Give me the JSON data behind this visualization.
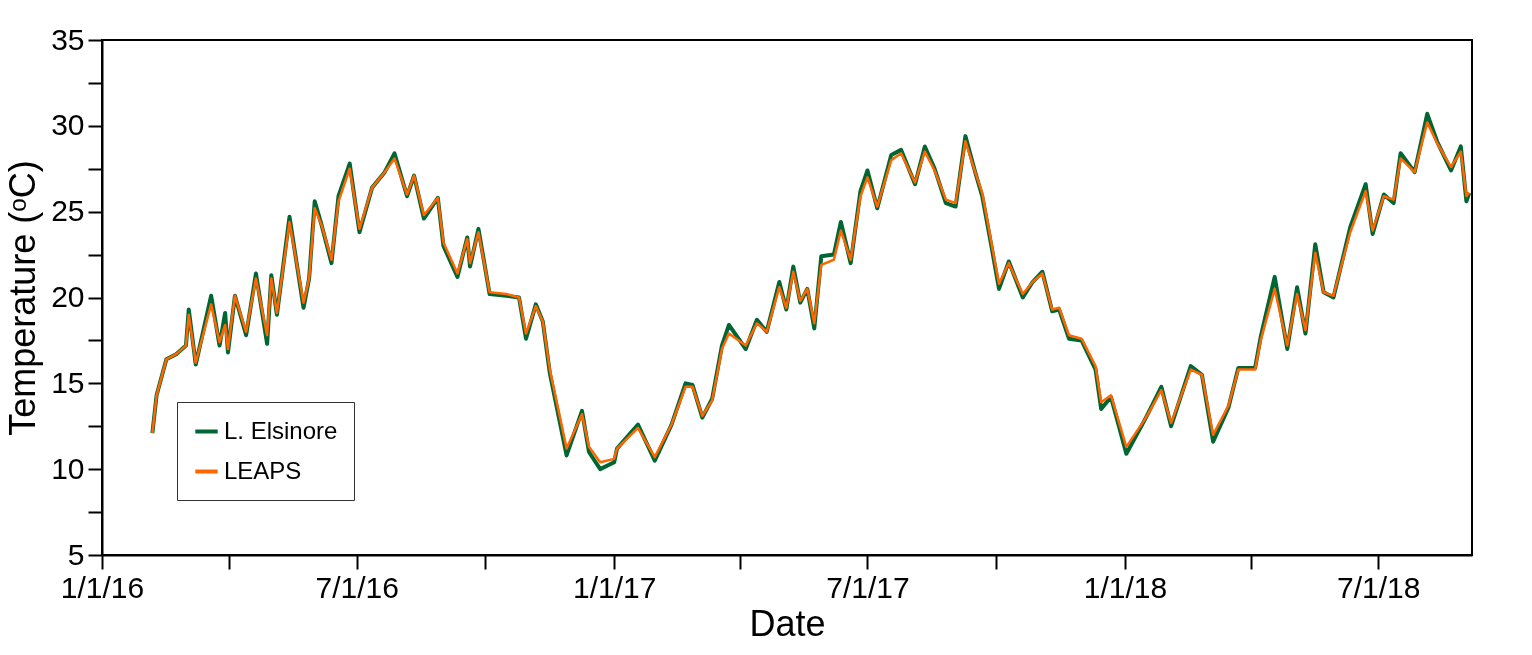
{
  "chart_data": {
    "type": "line",
    "xlabel": "Date",
    "ylabel": "Temperature (ᵒC)",
    "xlim": [
      "2016-01-01",
      "2018-09-06"
    ],
    "xticks": [
      {
        "value": "2016-01-01",
        "label": "1/1/16"
      },
      {
        "value": "2016-04-01",
        "label": null
      },
      {
        "value": "2016-07-01",
        "label": "7/1/16"
      },
      {
        "value": "2016-10-01",
        "label": null
      },
      {
        "value": "2017-01-01",
        "label": "1/1/17"
      },
      {
        "value": "2017-04-01",
        "label": null
      },
      {
        "value": "2017-07-01",
        "label": "7/1/17"
      },
      {
        "value": "2017-10-01",
        "label": null
      },
      {
        "value": "2018-01-01",
        "label": "1/1/18"
      },
      {
        "value": "2018-04-01",
        "label": null
      },
      {
        "value": "2018-07-01",
        "label": "7/1/18"
      }
    ],
    "ylim": [
      5,
      35
    ],
    "yticks": [
      5,
      {
        "value": 7.5,
        "label": null
      },
      10,
      {
        "value": 12.5,
        "label": null
      },
      15,
      {
        "value": 17.5,
        "label": null
      },
      20,
      {
        "value": 22.5,
        "label": null
      },
      25,
      {
        "value": 27.5,
        "label": null
      },
      30,
      {
        "value": 32.5,
        "label": null
      },
      35
    ],
    "grid": false,
    "legend": "bottom left",
    "line_style": "solid",
    "x": [
      "2016-02-06",
      "2016-02-09",
      "2016-02-16",
      "2016-02-23",
      "2016-03-01",
      "2016-03-03",
      "2016-03-08",
      "2016-03-19",
      "2016-03-25",
      "2016-03-29",
      "2016-03-31",
      "2016-04-05",
      "2016-04-13",
      "2016-04-20",
      "2016-04-28",
      "2016-05-01",
      "2016-05-05",
      "2016-05-14",
      "2016-05-24",
      "2016-05-28",
      "2016-06-01",
      "2016-06-06",
      "2016-06-13",
      "2016-06-18",
      "2016-06-26",
      "2016-07-03",
      "2016-07-12",
      "2016-07-21",
      "2016-07-28",
      "2016-08-06",
      "2016-08-11",
      "2016-08-18",
      "2016-08-28",
      "2016-09-01",
      "2016-09-11",
      "2016-09-18",
      "2016-09-20",
      "2016-09-26",
      "2016-10-04",
      "2016-10-16",
      "2016-10-25",
      "2016-10-30",
      "2016-11-06",
      "2016-11-11",
      "2016-11-16",
      "2016-11-28",
      "2016-12-09",
      "2016-12-14",
      "2016-12-22",
      "2017-01-01",
      "2017-01-03",
      "2017-01-18",
      "2017-01-30",
      "2017-02-11",
      "2017-02-21",
      "2017-02-26",
      "2017-03-05",
      "2017-03-12",
      "2017-03-19",
      "2017-03-24",
      "2017-04-05",
      "2017-04-13",
      "2017-04-20",
      "2017-04-29",
      "2017-05-04",
      "2017-05-09",
      "2017-05-14",
      "2017-05-19",
      "2017-05-24",
      "2017-05-29",
      "2017-06-07",
      "2017-06-12",
      "2017-06-19",
      "2017-06-26",
      "2017-07-01",
      "2017-07-08",
      "2017-07-18",
      "2017-07-25",
      "2017-08-04",
      "2017-08-11",
      "2017-08-18",
      "2017-08-26",
      "2017-09-02",
      "2017-09-09",
      "2017-09-16",
      "2017-09-21",
      "2017-09-28",
      "2017-10-03",
      "2017-10-10",
      "2017-10-20",
      "2017-10-27",
      "2017-11-03",
      "2017-11-10",
      "2017-11-15",
      "2017-11-22",
      "2017-12-01",
      "2017-12-11",
      "2017-12-15",
      "2017-12-22",
      "2018-01-02",
      "2018-01-16",
      "2018-01-27",
      "2018-02-03",
      "2018-02-17",
      "2018-02-25",
      "2018-03-05",
      "2018-03-16",
      "2018-03-23",
      "2018-04-04",
      "2018-04-08",
      "2018-04-18",
      "2018-04-27",
      "2018-05-04",
      "2018-05-10",
      "2018-05-17",
      "2018-05-23",
      "2018-05-30",
      "2018-06-11",
      "2018-06-22",
      "2018-06-27",
      "2018-07-05",
      "2018-07-12",
      "2018-07-17",
      "2018-07-27",
      "2018-08-05",
      "2018-08-12",
      "2018-08-22",
      "2018-08-29",
      "2018-09-02",
      "2018-09-04"
    ],
    "series": [
      {
        "name": "L. Elsinore",
        "color": "#006633",
        "values": [
          12.1,
          14.3,
          16.4,
          16.7,
          17.2,
          19.3,
          16.1,
          20.1,
          17.2,
          19.1,
          16.8,
          20.1,
          17.8,
          21.4,
          17.3,
          21.3,
          19.0,
          24.7,
          19.4,
          21.1,
          25.6,
          24.2,
          22.0,
          25.9,
          27.8,
          23.8,
          26.4,
          27.3,
          28.4,
          25.9,
          27.1,
          24.6,
          25.8,
          23.0,
          21.2,
          23.5,
          21.8,
          24.0,
          20.2,
          20.1,
          20.0,
          17.6,
          19.6,
          18.6,
          15.6,
          10.8,
          13.4,
          11.0,
          10.0,
          10.4,
          11.2,
          12.6,
          10.5,
          12.6,
          15.0,
          14.9,
          13.0,
          14.1,
          17.2,
          18.4,
          17.0,
          18.7,
          18.0,
          20.9,
          19.3,
          21.8,
          19.7,
          20.5,
          18.2,
          22.4,
          22.5,
          24.4,
          22.0,
          26.2,
          27.4,
          25.2,
          28.3,
          28.6,
          26.6,
          28.8,
          27.5,
          25.5,
          25.3,
          29.4,
          27.3,
          25.9,
          22.8,
          20.5,
          22.1,
          20.0,
          20.9,
          21.5,
          19.2,
          19.3,
          17.6,
          17.5,
          15.8,
          13.5,
          14.2,
          10.9,
          13.0,
          14.8,
          12.5,
          16.0,
          15.5,
          11.6,
          13.6,
          15.9,
          15.9,
          17.7,
          21.2,
          17.0,
          20.6,
          17.9,
          23.1,
          20.3,
          20.0,
          24.1,
          26.6,
          23.7,
          26.0,
          25.5,
          28.4,
          27.3,
          30.7,
          29.1,
          27.4,
          28.8,
          25.6,
          26.1
        ]
      },
      {
        "name": "LEAPS",
        "color": "#ff6600",
        "values": [
          12.1,
          14.3,
          16.4,
          16.7,
          17.2,
          19.0,
          16.2,
          19.6,
          17.4,
          18.4,
          17.0,
          20.1,
          18.0,
          21.1,
          17.8,
          21.1,
          19.1,
          24.4,
          19.7,
          21.1,
          25.2,
          24.2,
          22.2,
          25.6,
          27.5,
          24.0,
          26.4,
          27.3,
          28.1,
          26.0,
          27.1,
          24.8,
          25.8,
          23.2,
          21.4,
          23.4,
          22.0,
          23.8,
          20.3,
          20.2,
          20.0,
          17.9,
          19.5,
          18.6,
          15.8,
          11.2,
          13.2,
          11.3,
          10.4,
          10.6,
          11.2,
          12.4,
          10.7,
          12.6,
          14.8,
          14.8,
          13.1,
          14.0,
          17.0,
          17.9,
          17.2,
          18.5,
          18.0,
          20.6,
          19.4,
          21.5,
          19.8,
          20.5,
          18.5,
          21.9,
          22.2,
          23.9,
          22.2,
          25.9,
          27.0,
          25.3,
          28.0,
          28.4,
          26.7,
          28.5,
          27.4,
          25.7,
          25.5,
          29.1,
          27.3,
          26.1,
          23.0,
          20.8,
          22.0,
          20.2,
          20.9,
          21.4,
          19.3,
          19.4,
          17.8,
          17.6,
          16.0,
          13.9,
          14.3,
          11.3,
          13.0,
          14.6,
          12.7,
          15.8,
          15.5,
          12.0,
          13.7,
          15.8,
          15.8,
          17.5,
          20.5,
          17.2,
          20.2,
          18.1,
          22.6,
          20.3,
          20.1,
          23.8,
          26.2,
          23.9,
          25.9,
          25.7,
          28.1,
          27.3,
          30.2,
          29.0,
          27.6,
          28.5,
          25.9,
          26.1
        ]
      }
    ]
  }
}
